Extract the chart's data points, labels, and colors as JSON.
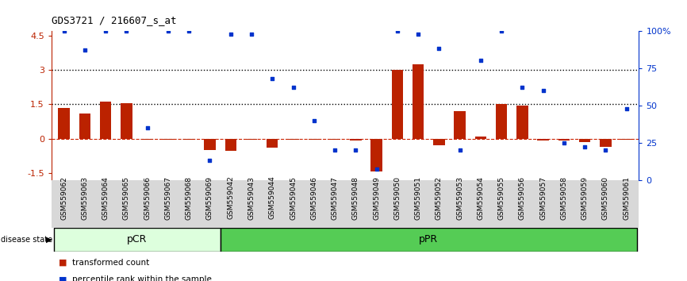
{
  "title": "GDS3721 / 216607_s_at",
  "samples": [
    "GSM559062",
    "GSM559063",
    "GSM559064",
    "GSM559065",
    "GSM559066",
    "GSM559067",
    "GSM559068",
    "GSM559069",
    "GSM559042",
    "GSM559043",
    "GSM559044",
    "GSM559045",
    "GSM559046",
    "GSM559047",
    "GSM559048",
    "GSM559049",
    "GSM559050",
    "GSM559051",
    "GSM559052",
    "GSM559053",
    "GSM559054",
    "GSM559055",
    "GSM559056",
    "GSM559057",
    "GSM559058",
    "GSM559059",
    "GSM559060",
    "GSM559061"
  ],
  "transformed_count": [
    1.35,
    1.1,
    1.6,
    1.55,
    -0.05,
    -0.05,
    -0.05,
    -0.5,
    -0.55,
    -0.05,
    -0.4,
    -0.05,
    -0.05,
    -0.05,
    -0.1,
    -1.45,
    3.0,
    3.25,
    -0.3,
    1.2,
    0.1,
    1.5,
    1.45,
    -0.1,
    -0.1,
    -0.15,
    -0.35,
    -0.05
  ],
  "percentile_rank": [
    100,
    87,
    100,
    100,
    35,
    100,
    100,
    13,
    98,
    98,
    68,
    62,
    40,
    20,
    20,
    7,
    100,
    98,
    88,
    20,
    80,
    100,
    62,
    60,
    25,
    22,
    20,
    48
  ],
  "pCR_count": 8,
  "total_count": 28,
  "group_labels": [
    "pCR",
    "pPR"
  ],
  "pCR_color": "#ddffdd",
  "pPR_color": "#55cc55",
  "bar_color": "#bb2200",
  "dot_color": "#0033cc",
  "zero_line_color": "#cc2200",
  "hline_color": "#000000",
  "ylim_left": [
    -1.8,
    4.7
  ],
  "ylim_right": [
    0,
    100
  ],
  "yticks_left": [
    -1.5,
    0.0,
    1.5,
    3.0,
    4.5
  ],
  "yticklabels_left": [
    "-1.5",
    "0",
    "1.5",
    "3",
    "4.5"
  ],
  "yticks_right": [
    0,
    25,
    50,
    75,
    100
  ],
  "yticklabels_right": [
    "0",
    "25",
    "50",
    "75",
    "100%"
  ],
  "hlines": [
    1.5,
    3.0
  ],
  "background_color": "#ffffff",
  "xticklabel_bg": "#d8d8d8"
}
